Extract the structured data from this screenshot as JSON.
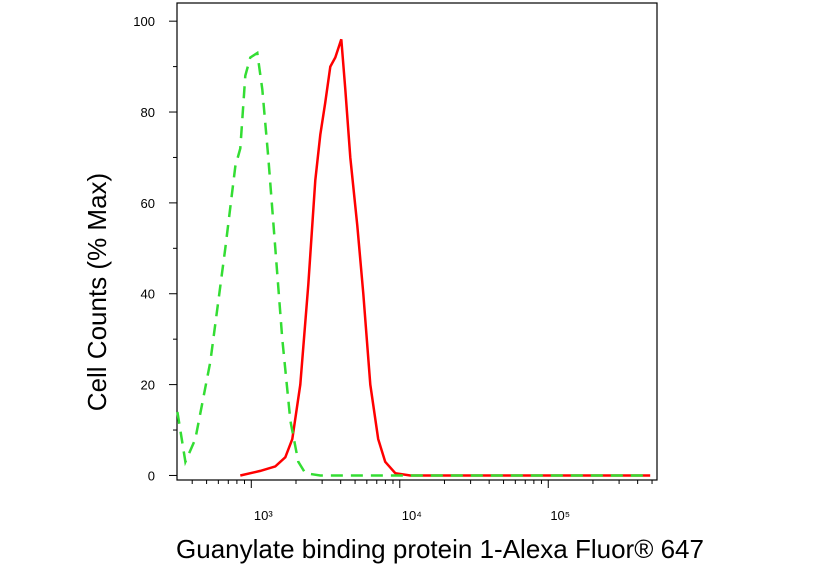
{
  "chart_data": {
    "type": "line",
    "xlabel": "Guanylate binding protein 1-Alexa Fluor® 647",
    "ylabel": "Cell Counts (% Max)",
    "xscale": "log",
    "xlim": [
      316,
      540000
    ],
    "ylim": [
      -1,
      104
    ],
    "xticks": [
      {
        "value": 1000,
        "label": "10³"
      },
      {
        "value": 10000,
        "label": "10⁴"
      },
      {
        "value": 100000,
        "label": "10⁵"
      }
    ],
    "xminorticks": [
      400,
      500,
      600,
      700,
      800,
      900,
      2000,
      3000,
      4000,
      5000,
      6000,
      7000,
      8000,
      9000,
      20000,
      30000,
      40000,
      50000,
      60000,
      70000,
      80000,
      90000,
      200000,
      300000,
      400000,
      500000
    ],
    "yticks": [
      0,
      20,
      40,
      60,
      80,
      100
    ],
    "yminorticks": [
      10,
      30,
      50,
      70,
      90
    ],
    "series": [
      {
        "color": "#ff0000",
        "dash": "solid",
        "x": [
          843,
          1150,
          1452,
          1694,
          1888,
          2138,
          2421,
          2698,
          2915,
          3148,
          3405,
          3680,
          3854,
          4036,
          4296,
          4645,
          5176,
          5678,
          6327,
          7161,
          7983,
          9333,
          11770,
          486000
        ],
        "values": [
          0,
          1,
          2,
          4,
          8,
          20,
          42,
          65,
          75,
          82,
          90,
          92,
          94,
          96,
          85,
          70,
          55,
          40,
          20,
          8,
          3,
          0.5,
          0,
          0
        ]
      },
      {
        "color": "#33dd33",
        "dash": "dashed",
        "x": [
          318,
          360,
          420,
          530,
          668,
          780,
          843,
          911,
          985,
          1097,
          1186,
          1301,
          1452,
          1618,
          1833,
          2072,
          2310,
          2915,
          486000
        ],
        "values": [
          14,
          3,
          8,
          25,
          50,
          68,
          72,
          88,
          92,
          93,
          85,
          70,
          50,
          30,
          12,
          3,
          0.5,
          0,
          0
        ]
      }
    ]
  }
}
